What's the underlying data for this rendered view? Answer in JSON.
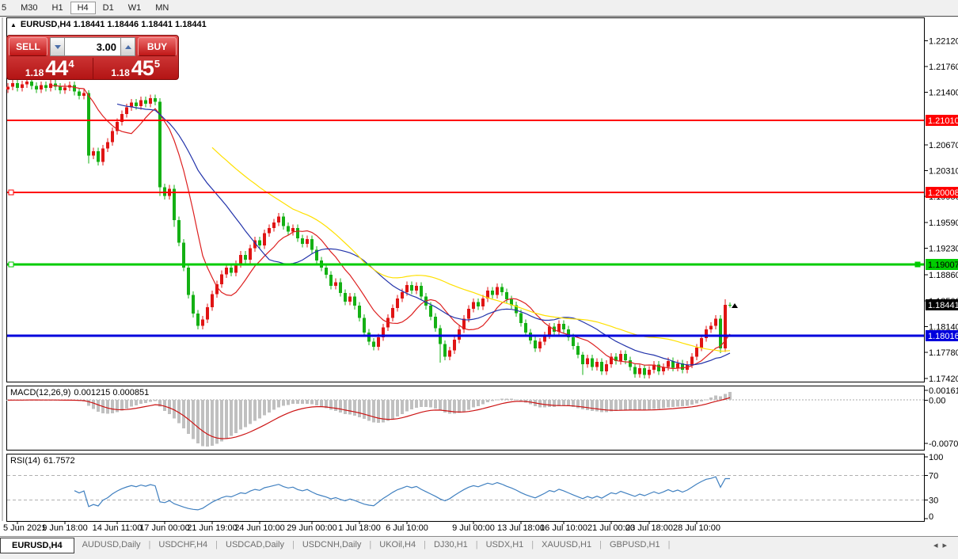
{
  "toolbar": {
    "timeframes": [
      "5",
      "M30",
      "H1",
      "H4",
      "D1",
      "W1",
      "MN"
    ],
    "active": "H4"
  },
  "chart_header": {
    "expand_icon": "▲",
    "title": "EURUSD,H4",
    "ohlc": "1.18441 1.18446 1.18441 1.18441"
  },
  "trade_panel": {
    "sell_label": "SELL",
    "buy_label": "BUY",
    "volume": "3.00",
    "sell_price": {
      "small": "1.18",
      "big": "44",
      "sup": "4"
    },
    "buy_price": {
      "small": "1.18",
      "big": "45",
      "sup": "5"
    }
  },
  "chart_data": {
    "type": "candlestick",
    "symbol": "EURUSD",
    "timeframe": "H4",
    "colors": {
      "bull": "#e01414",
      "bear": "#14b014",
      "ma_fast": "#dd2020",
      "ma_medium": "#2233aa",
      "ma_slow": "#ffe000",
      "macd_hist": "#c0c0c0",
      "macd_signal": "#cc1414",
      "rsi_line": "#4080c0"
    },
    "y_axis_ticks": [
      1.2212,
      1.2176,
      1.214,
      1.2067,
      1.2031,
      1.1995,
      1.1959,
      1.1923,
      1.1886,
      1.185,
      1.1814,
      1.1778,
      1.1742
    ],
    "level_lines": [
      {
        "price": 1.2101,
        "label": "1.21010",
        "color": "#ff0000",
        "text_color": "#ffffff",
        "width": 2,
        "handle_left": false,
        "handle_right": false
      },
      {
        "price": 1.20008,
        "label": "1.20008",
        "color": "#ff0000",
        "text_color": "#ffffff",
        "width": 2,
        "handle_left": true,
        "handle_right": false
      },
      {
        "price": 1.19007,
        "label": "1.19007",
        "color": "#00cc00",
        "text_color": "#000000",
        "width": 3,
        "handle_left": true,
        "handle_right": true
      },
      {
        "price": 1.18016,
        "label": "1.18016",
        "color": "#0000dd",
        "text_color": "#ffffff",
        "width": 3,
        "handle_left": false,
        "handle_right": false
      }
    ],
    "current_price": {
      "price": 1.18441,
      "label": "1.18441",
      "bg": "#000000",
      "text_color": "#ffffff"
    },
    "moving_averages": [
      {
        "name": "fast",
        "period": 10,
        "color": "#dd2020"
      },
      {
        "name": "medium",
        "period": 24,
        "color": "#2233aa"
      },
      {
        "name": "slow",
        "period": 44,
        "color": "#ffe000"
      }
    ],
    "candles": {
      "first_open": 1.2144,
      "wick": 0.0005,
      "closes": [
        1.2148,
        1.2153,
        1.2146,
        1.2151,
        1.2155,
        1.2149,
        1.2144,
        1.215,
        1.2146,
        1.2152,
        1.2148,
        1.2143,
        1.2147,
        1.215,
        1.2141,
        1.2135,
        1.2139,
        1.2052,
        1.2058,
        1.2043,
        1.2062,
        1.2071,
        1.2086,
        1.2099,
        1.211,
        1.2119,
        1.2126,
        1.2121,
        1.2129,
        1.2124,
        1.2132,
        1.2127,
        1.2008,
        1.1996,
        1.2006,
        1.1962,
        1.1931,
        1.1896,
        1.1858,
        1.1832,
        1.1815,
        1.1824,
        1.1841,
        1.1859,
        1.1873,
        1.1887,
        1.1896,
        1.1889,
        1.1901,
        1.1914,
        1.1907,
        1.1923,
        1.1934,
        1.1927,
        1.1944,
        1.1951,
        1.1959,
        1.1967,
        1.1954,
        1.1946,
        1.1951,
        1.1937,
        1.1929,
        1.1936,
        1.1921,
        1.1906,
        1.1896,
        1.1886,
        1.1871,
        1.1876,
        1.1861,
        1.1849,
        1.1856,
        1.1843,
        1.1826,
        1.1806,
        1.1793,
        1.1786,
        1.1799,
        1.1813,
        1.1826,
        1.184,
        1.1853,
        1.1862,
        1.1872,
        1.1864,
        1.1871,
        1.1856,
        1.1843,
        1.1828,
        1.1812,
        1.179,
        1.1772,
        1.1781,
        1.1796,
        1.181,
        1.1825,
        1.1839,
        1.1848,
        1.1842,
        1.1853,
        1.1864,
        1.1858,
        1.1869,
        1.1862,
        1.1852,
        1.1844,
        1.1833,
        1.1819,
        1.1806,
        1.1795,
        1.1784,
        1.1793,
        1.1802,
        1.1814,
        1.1807,
        1.1818,
        1.181,
        1.1799,
        1.1787,
        1.1775,
        1.1762,
        1.177,
        1.1758,
        1.1765,
        1.1752,
        1.1762,
        1.1772,
        1.1766,
        1.1776,
        1.1767,
        1.1758,
        1.1748,
        1.1756,
        1.1747,
        1.1754,
        1.1761,
        1.1752,
        1.1758,
        1.1766,
        1.1757,
        1.1763,
        1.1754,
        1.1761,
        1.1772,
        1.1785,
        1.1798,
        1.181,
        1.1815,
        1.1825,
        1.1784,
        1.18441,
        1.18441
      ],
      "special": {
        "17": [
          1.2139,
          1.2143,
          1.2041,
          1.2052
        ],
        "32": [
          1.2127,
          1.2132,
          1.1996,
          1.2008
        ],
        "35": [
          1.2006,
          1.2011,
          1.1953,
          1.1962
        ],
        "91": [
          1.1812,
          1.1816,
          1.1764,
          1.179
        ],
        "121": [
          1.1775,
          1.1779,
          1.1747,
          1.1762
        ],
        "150": [
          1.1825,
          1.183,
          1.1777,
          1.1784
        ],
        "151": [
          1.1784,
          1.1852,
          1.1779,
          1.18441
        ],
        "152": [
          1.18446,
          1.18475,
          1.18405,
          1.18441
        ]
      }
    },
    "x_ticks": [
      {
        "label": "5 Jun 2021",
        "bar": 2
      },
      {
        "label": "9 Jun 18:00",
        "bar": 12
      },
      {
        "label": "14 Jun 11:00",
        "bar": 23
      },
      {
        "label": "17 Jun 00:00",
        "bar": 33
      },
      {
        "label": "21 Jun 19:00",
        "bar": 43
      },
      {
        "label": "24 Jun 10:00",
        "bar": 53
      },
      {
        "label": "29 Jun 00:00",
        "bar": 64
      },
      {
        "label": "1 Jul 18:00",
        "bar": 74
      },
      {
        "label": "6 Jul 10:00",
        "bar": 84
      },
      {
        "label": "9 Jul 00:00",
        "bar": 98
      },
      {
        "label": "13 Jul 18:00",
        "bar": 108
      },
      {
        "label": "16 Jul 10:00",
        "bar": 117
      },
      {
        "label": "21 Jul 00:00",
        "bar": 127
      },
      {
        "label": "23 Jul 18:00",
        "bar": 135
      },
      {
        "label": "28 Jul 10:00",
        "bar": 145
      }
    ],
    "macd": {
      "label": "MACD(12,26,9)",
      "values_text": "0.001215 0.000851",
      "fast": 12,
      "slow": 26,
      "signal": 9,
      "axis": [
        {
          "label": "0.00161",
          "value": 0.00161
        },
        {
          "label": "0.00",
          "value": 0
        },
        {
          "label": "-0.007088",
          "value": -0.007088
        }
      ]
    },
    "rsi": {
      "label": "RSI(14)",
      "value_text": "61.7572",
      "period": 14,
      "axis": [
        100,
        70,
        30,
        0
      ],
      "levels": [
        70,
        30
      ]
    }
  },
  "tab_bar": {
    "tabs": [
      "EURUSD,H4",
      "AUDUSD,Daily",
      "USDCHF,H4",
      "USDCAD,Daily",
      "USDCNH,Daily",
      "UKOil,H4",
      "DJ30,H1",
      "USDX,H1",
      "XAUUSD,H1",
      "GBPUSD,H1"
    ],
    "active": "EURUSD,H4",
    "nav_left": "◂",
    "nav_right": "▸"
  }
}
